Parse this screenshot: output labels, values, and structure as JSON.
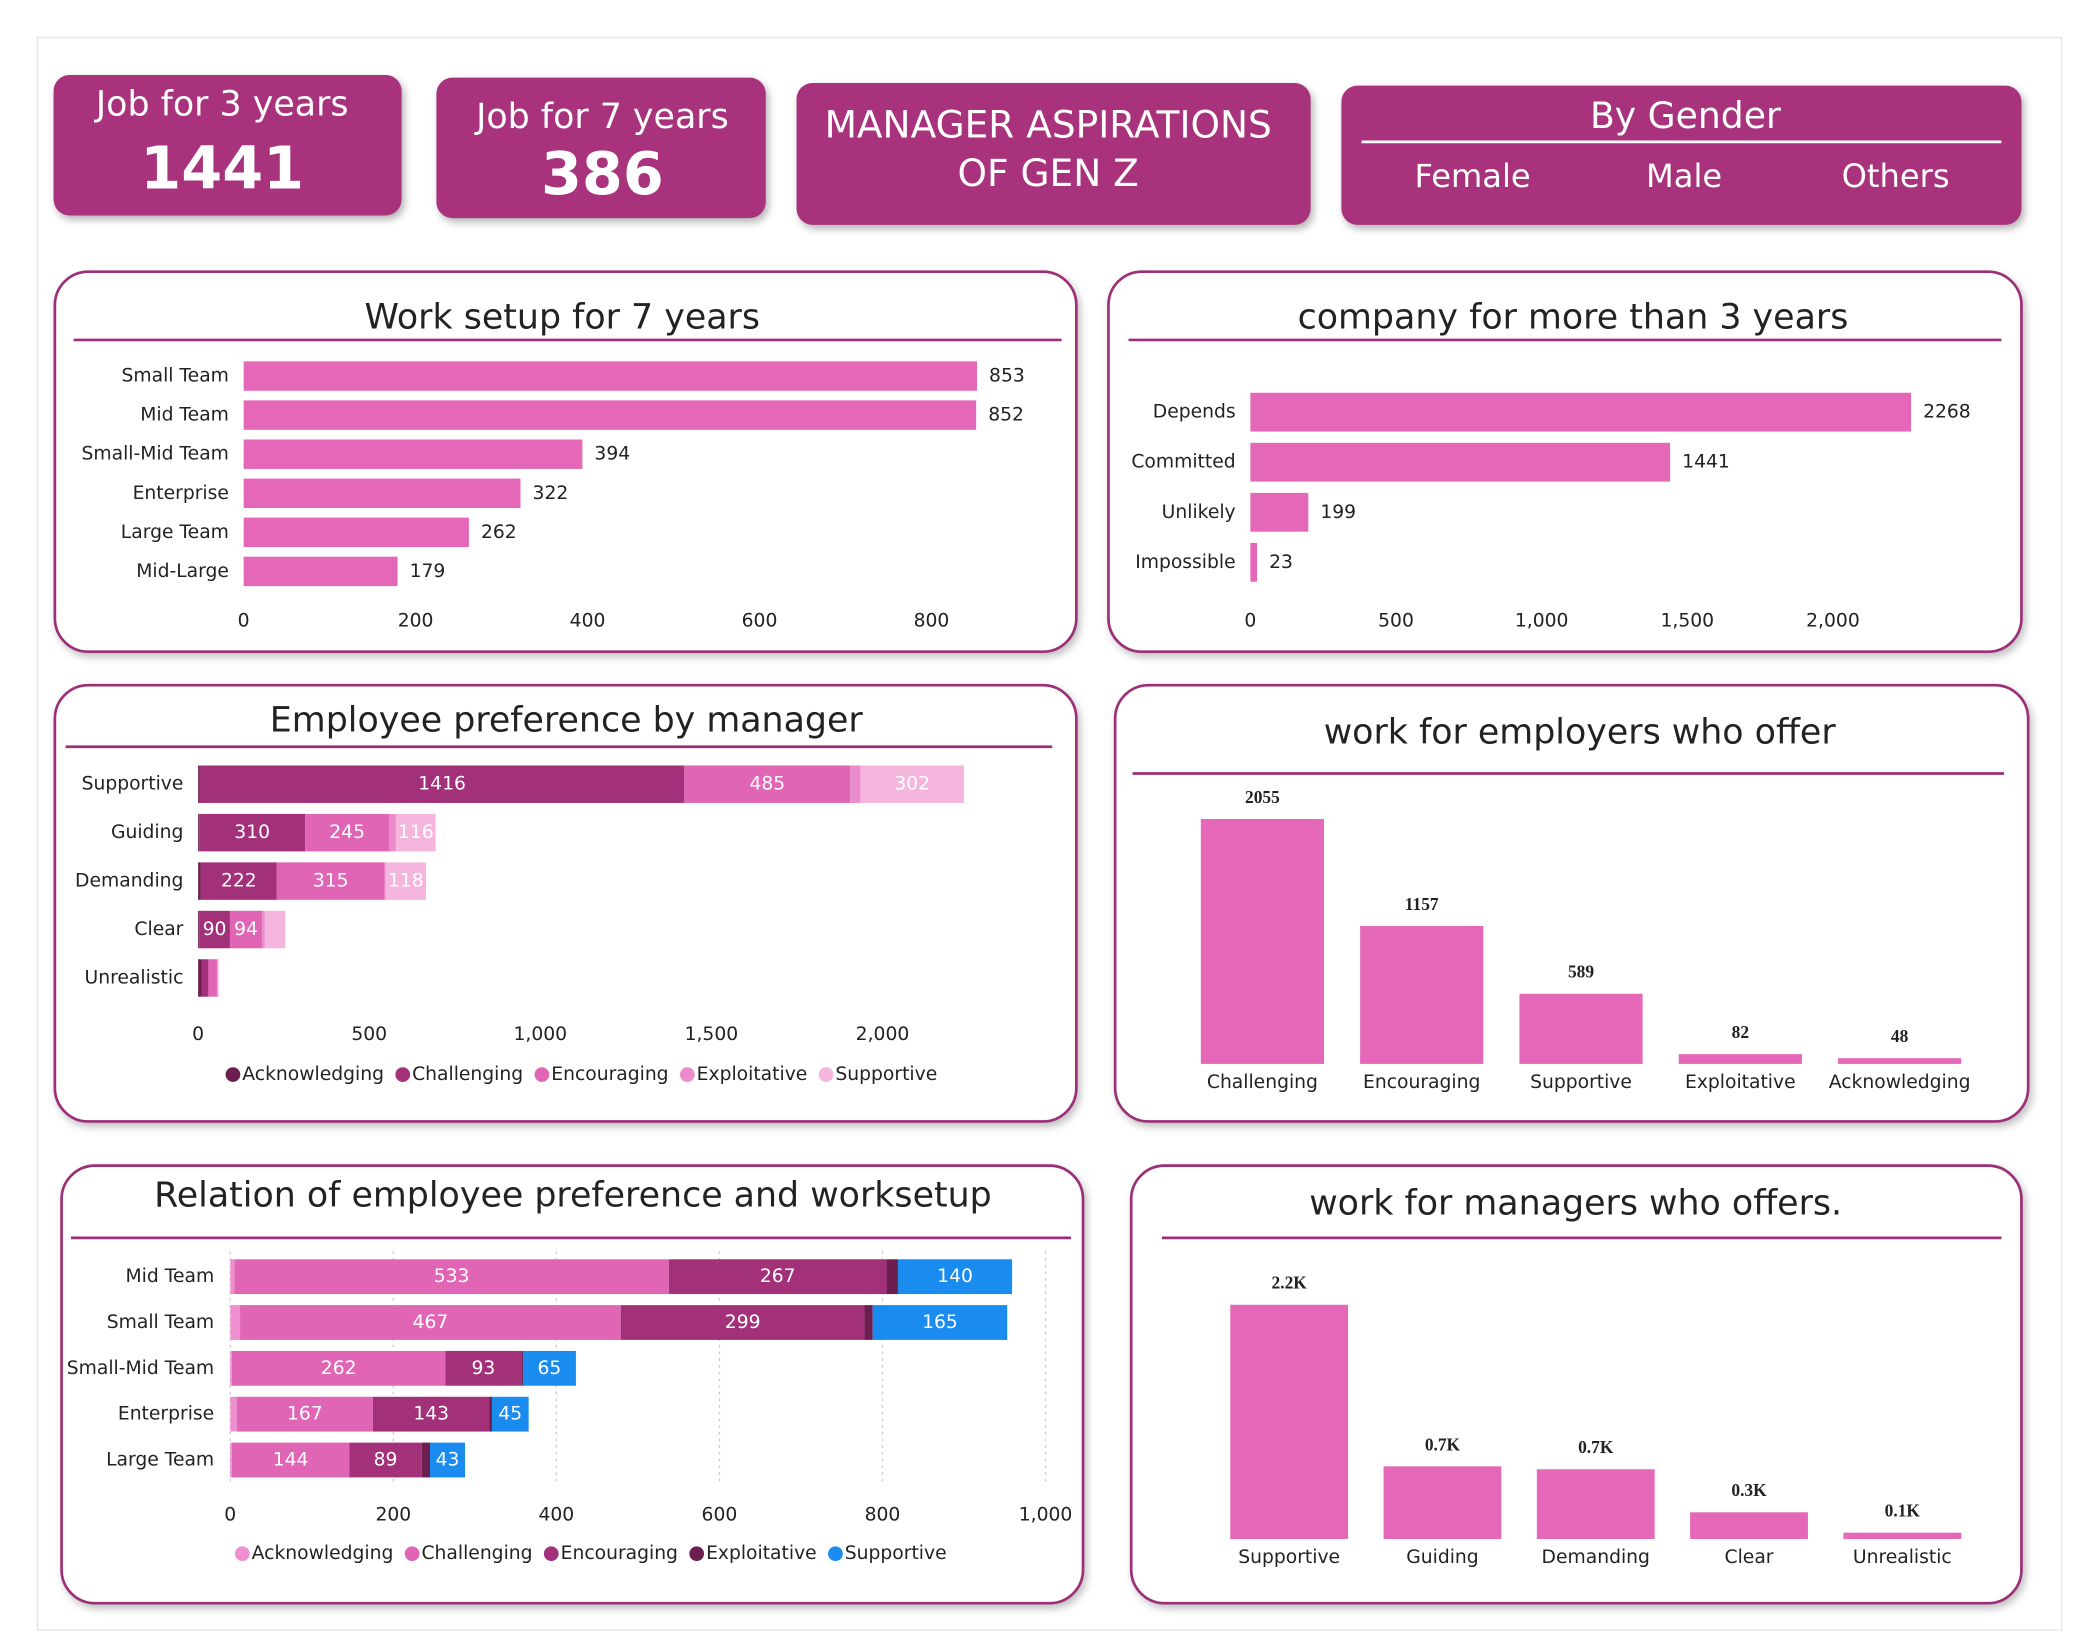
{
  "header": {
    "title_lines": [
      "MANAGER ASPIRATIONS",
      "OF GEN Z"
    ]
  },
  "kpis": [
    {
      "label": "Job for 3 years",
      "value": 1441
    },
    {
      "label": "Job for 7 years",
      "value": 386
    }
  ],
  "filter": {
    "title": "By Gender",
    "options": [
      "Female",
      "Male",
      "Others"
    ]
  },
  "chart_data": [
    {
      "type": "hbar",
      "title": "Work setup for 7 years",
      "categories": [
        "Small Team",
        "Mid Team",
        "Small-Mid Team",
        "Enterprise",
        "Large Team",
        "Mid-Large"
      ],
      "values": [
        853,
        852,
        394,
        322,
        262,
        179
      ],
      "color": "#e468b7",
      "xlim": [
        0,
        900
      ],
      "xticks": [
        0,
        200,
        400,
        600,
        800
      ]
    },
    {
      "type": "hbar",
      "title": "company for more than 3 years",
      "categories": [
        "Depends",
        "Committed",
        "Unlikely",
        "Impossible"
      ],
      "values": [
        2268,
        1441,
        199,
        23
      ],
      "color": "#e468b7",
      "xlim": [
        0,
        2500
      ],
      "xticks": [
        0,
        500,
        {
          "value": 1000,
          "label": "1,000"
        },
        {
          "value": 1500,
          "label": "1,500"
        },
        {
          "value": 2000,
          "label": "2,000"
        }
      ]
    },
    {
      "type": "stacked_hbar",
      "title": "Employee preference by manager",
      "categories": [
        "Supportive",
        "Guiding",
        "Demanding",
        "Clear",
        "Unrealistic"
      ],
      "series": [
        {
          "name": "Acknowledging",
          "color": "#6b1f4f",
          "values": [
            5,
            3,
            8,
            3,
            10
          ]
        },
        {
          "name": "Challenging",
          "color": "#a3317a",
          "values": [
            1416,
            310,
            222,
            90,
            20
          ]
        },
        {
          "name": "Encouraging",
          "color": "#e066b5",
          "values": [
            485,
            245,
            315,
            94,
            25
          ]
        },
        {
          "name": "Exploitative",
          "color": "#ea8bcb",
          "values": [
            30,
            20,
            3,
            8,
            2
          ]
        },
        {
          "name": "Supportive",
          "color": "#f4b6dc",
          "values": [
            302,
            116,
            118,
            60,
            3
          ]
        }
      ],
      "xlim": [
        0,
        2500
      ],
      "xticks": [
        0,
        500,
        {
          "value": 1000,
          "label": "1,000"
        },
        {
          "value": 1500,
          "label": "1,500"
        },
        {
          "value": 2000,
          "label": "2,000"
        }
      ]
    },
    {
      "type": "bar",
      "title": "work for employers who offer",
      "categories": [
        "Challenging",
        "Encouraging",
        "Supportive",
        "Exploitative",
        "Acknowledging"
      ],
      "values": [
        2055,
        1157,
        589,
        82,
        48
      ],
      "color": "#e468b7"
    },
    {
      "type": "stacked_hbar",
      "title": "Relation of employee preference and worksetup",
      "categories": [
        "Mid Team",
        "Small Team",
        "Small-Mid Team",
        "Enterprise",
        "Large Team"
      ],
      "series": [
        {
          "name": "Acknowledging",
          "color": "#ee90cf",
          "values": [
            5,
            12,
            2,
            8,
            2
          ]
        },
        {
          "name": "Challenging",
          "color": "#e066b5",
          "values": [
            533,
            467,
            262,
            167,
            144
          ]
        },
        {
          "name": "Encouraging",
          "color": "#a3317a",
          "values": [
            267,
            299,
            93,
            143,
            89
          ]
        },
        {
          "name": "Exploitative",
          "color": "#6b1f4f",
          "values": [
            14,
            10,
            2,
            3,
            10
          ]
        },
        {
          "name": "Supportive",
          "color": "#1a8cf0",
          "values": [
            140,
            165,
            65,
            45,
            43
          ]
        }
      ],
      "xlim": [
        0,
        1000
      ],
      "xticks": [
        0,
        200,
        400,
        600,
        800,
        {
          "value": 1000,
          "label": "1,000"
        }
      ],
      "grid": true
    },
    {
      "type": "bar",
      "title": "work for managers who offers.",
      "categories": [
        "Supportive",
        "Guiding",
        "Demanding",
        "Clear",
        "Unrealistic"
      ],
      "values": [
        2238,
        694,
        666,
        255,
        60
      ],
      "value_labels": [
        "2.2K",
        "0.7K",
        "0.7K",
        "0.3K",
        "0.1K"
      ],
      "color": "#e468b7"
    }
  ]
}
